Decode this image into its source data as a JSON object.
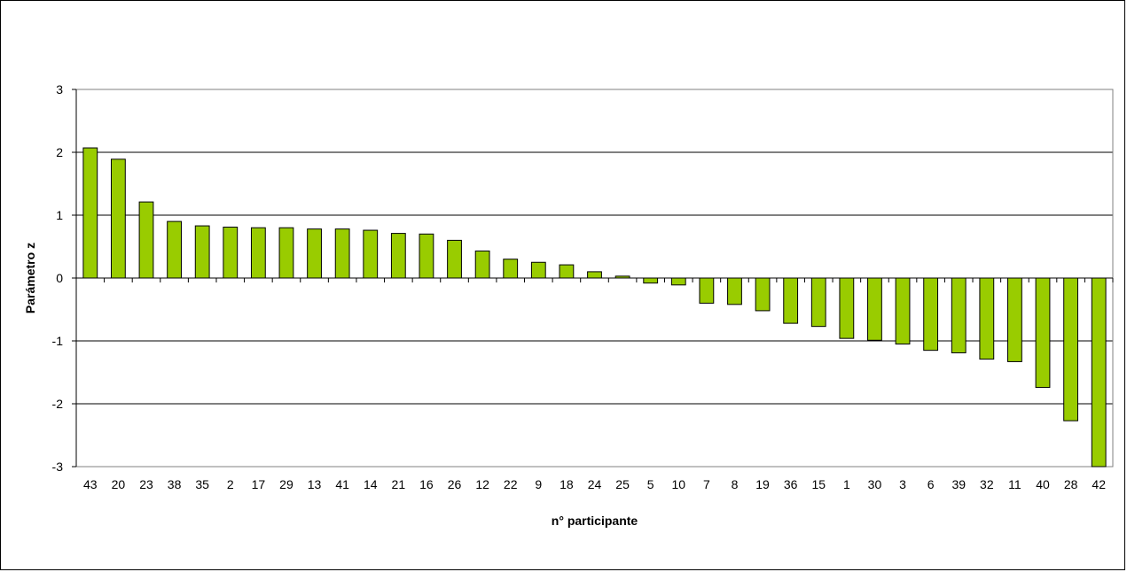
{
  "chart_data": {
    "type": "bar",
    "title": "",
    "xlabel": "n° participante",
    "ylabel": "Parámetro z",
    "ylim": [
      -3,
      3
    ],
    "yticks": [
      3,
      2,
      1,
      0,
      -1,
      -2,
      -3
    ],
    "grid": true,
    "legend": "none",
    "categories": [
      "43",
      "20",
      "23",
      "38",
      "35",
      "2",
      "17",
      "29",
      "13",
      "41",
      "14",
      "21",
      "16",
      "26",
      "12",
      "22",
      "9",
      "18",
      "24",
      "25",
      "5",
      "10",
      "7",
      "8",
      "19",
      "36",
      "15",
      "1",
      "30",
      "3",
      "6",
      "39",
      "32",
      "11",
      "40",
      "28",
      "42"
    ],
    "values": [
      2.07,
      1.89,
      1.21,
      0.9,
      0.83,
      0.81,
      0.8,
      0.8,
      0.78,
      0.78,
      0.76,
      0.71,
      0.7,
      0.6,
      0.43,
      0.3,
      0.25,
      0.21,
      0.1,
      0.03,
      -0.08,
      -0.11,
      -0.4,
      -0.42,
      -0.52,
      -0.72,
      -0.77,
      -0.96,
      -0.99,
      -1.05,
      -1.15,
      -1.19,
      -1.29,
      -1.33,
      -1.74,
      -2.27,
      -3.0
    ],
    "colors": {
      "bar_fill": "#99cc00",
      "bar_stroke": "#000000",
      "grid": "#000000",
      "plot_border": "#808080"
    }
  }
}
